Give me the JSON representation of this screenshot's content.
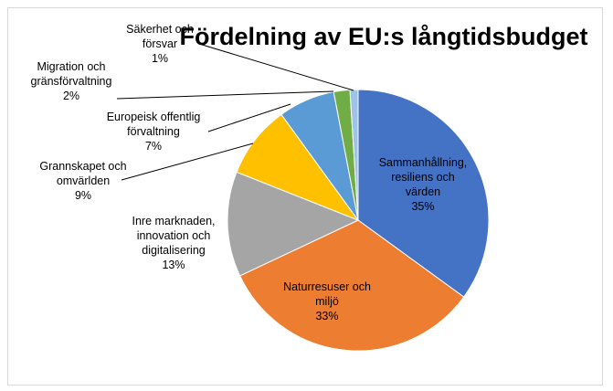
{
  "chart_data": {
    "type": "pie",
    "title": "Fördelning av EU:s långtidsbudget",
    "slices": [
      {
        "lines": [
          "Sammanhållning,",
          "resiliens och",
          "värden"
        ],
        "pct_label": "35%",
        "value": 35,
        "color": "#4472C4"
      },
      {
        "lines": [
          "Naturresuser och",
          "miljö"
        ],
        "pct_label": "33%",
        "value": 33,
        "color": "#ED7D31"
      },
      {
        "lines": [
          "Inre marknaden,",
          "innovation och",
          "digitalisering"
        ],
        "pct_label": "13%",
        "value": 13,
        "color": "#A5A5A5"
      },
      {
        "lines": [
          "Grannskapet och",
          "omvärlden"
        ],
        "pct_label": "9%",
        "value": 9,
        "color": "#FFC000"
      },
      {
        "lines": [
          "Europeisk offentlig",
          "förvaltning"
        ],
        "pct_label": "7%",
        "value": 7,
        "color": "#5B9BD5"
      },
      {
        "lines": [
          "Migration och",
          "gränsförvaltning"
        ],
        "pct_label": "2%",
        "value": 2,
        "color": "#70AD47"
      },
      {
        "lines": [
          "Säkerhet och",
          "försvar"
        ],
        "pct_label": "1%",
        "value": 1,
        "color": "#9DC3E6"
      }
    ]
  }
}
